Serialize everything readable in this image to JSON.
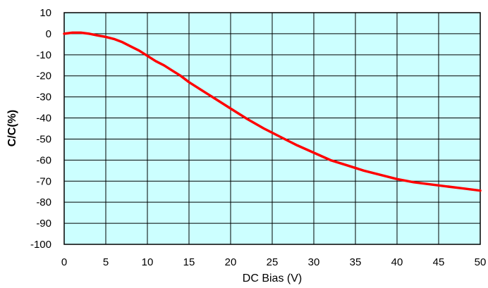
{
  "chart_data": {
    "type": "line",
    "title": "",
    "xlabel": "DC Bias (V)",
    "ylabel": "C/C(%)",
    "xlim": [
      0,
      50
    ],
    "ylim": [
      -100,
      10
    ],
    "xticks": [
      "0",
      "5",
      "10",
      "15",
      "20",
      "25",
      "30",
      "35",
      "40",
      "45",
      "50"
    ],
    "yticks": [
      "10",
      "0",
      "-10",
      "-20",
      "-30",
      "-40",
      "-50",
      "-60",
      "-70",
      "-80",
      "-90",
      "-100"
    ],
    "grid": true,
    "plot_background": "#ccffff",
    "series": [
      {
        "color": "#ff0000",
        "x": [
          0,
          1,
          2,
          3,
          4,
          5,
          6,
          7,
          8,
          9,
          10,
          11,
          12,
          13,
          14,
          15,
          16,
          17,
          18,
          19,
          20,
          22,
          24,
          26,
          28,
          30,
          32,
          34,
          36,
          38,
          40,
          42,
          44,
          46,
          48,
          50
        ],
        "y": [
          0,
          0.5,
          0.5,
          0,
          -0.8,
          -1.5,
          -2.5,
          -4,
          -6,
          -8,
          -10.5,
          -13,
          -15,
          -17.5,
          -20,
          -23,
          -25.5,
          -28,
          -30.5,
          -33,
          -35.5,
          -40.5,
          -45,
          -49,
          -53,
          -56.5,
          -60,
          -62.5,
          -65,
          -67,
          -69,
          -70.5,
          -71.5,
          -72.5,
          -73.5,
          -74.5
        ]
      }
    ]
  }
}
